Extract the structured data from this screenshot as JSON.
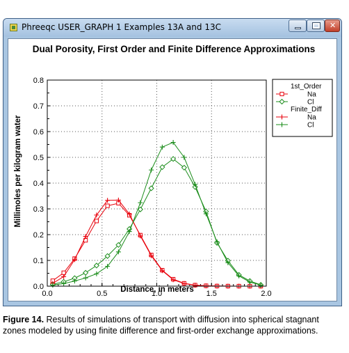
{
  "window": {
    "title": "Phreeqc USER_GRAPH 1 Examples 13A and 13C"
  },
  "caption": {
    "label": "Figure 14.",
    "text": " Results of simulations of transport with diffusion into spherical stagnant zones modeled by using finite difference and first-order exchange approximations."
  },
  "colors": {
    "Na": "#e8000b",
    "Cl": "#1a8c1a",
    "grid": "#555555"
  },
  "chart_data": {
    "type": "line",
    "title": "Dual Porosity, First Order and Finite Difference Approximations",
    "xlabel": "Distance, in meters",
    "ylabel": "Millimoles per kilogram water",
    "xlim": [
      0,
      2
    ],
    "ylim": [
      0,
      0.8
    ],
    "xticks": [
      "0.0",
      "0.5",
      "1.0",
      "1.5",
      "2.0"
    ],
    "yticks": [
      "0.0",
      "0.1",
      "0.2",
      "0.3",
      "0.4",
      "0.5",
      "0.6",
      "0.7",
      "0.8"
    ],
    "grid": true,
    "legend_position": "right",
    "legend_groups": [
      {
        "heading": "1st_Order",
        "items": [
          "Na",
          "Cl"
        ]
      },
      {
        "heading": "Finite_Diff",
        "items": [
          "Na",
          "Cl"
        ]
      }
    ],
    "series": [
      {
        "group": "1st_Order",
        "name": "Na",
        "element": "Na",
        "marker": "square",
        "x": [
          0.05,
          0.15,
          0.25,
          0.35,
          0.45,
          0.55,
          0.65,
          0.75,
          0.85,
          0.95,
          1.05,
          1.15,
          1.25,
          1.35,
          1.45,
          1.55,
          1.65,
          1.75,
          1.85,
          1.95
        ],
        "y": [
          0.021,
          0.052,
          0.107,
          0.178,
          0.253,
          0.312,
          0.322,
          0.275,
          0.198,
          0.121,
          0.062,
          0.027,
          0.011,
          0.004,
          0.0015,
          0.0005,
          0.0002,
          0.0001,
          0.0,
          0.0
        ]
      },
      {
        "group": "1st_Order",
        "name": "Cl",
        "element": "Cl",
        "marker": "diamond",
        "x": [
          0.05,
          0.15,
          0.25,
          0.35,
          0.45,
          0.55,
          0.65,
          0.75,
          0.85,
          0.95,
          1.05,
          1.15,
          1.25,
          1.35,
          1.45,
          1.55,
          1.65,
          1.75,
          1.85,
          1.95
        ],
        "y": [
          0.007,
          0.017,
          0.031,
          0.052,
          0.08,
          0.117,
          0.16,
          0.222,
          0.298,
          0.38,
          0.462,
          0.494,
          0.46,
          0.385,
          0.29,
          0.168,
          0.099,
          0.044,
          0.02,
          0.005
        ]
      },
      {
        "group": "Finite_Diff",
        "name": "Na",
        "element": "Na",
        "marker": "plus",
        "x": [
          0.05,
          0.15,
          0.25,
          0.35,
          0.45,
          0.55,
          0.65,
          0.75,
          0.85,
          0.95,
          1.05,
          1.15,
          1.25,
          1.35,
          1.45,
          1.55,
          1.65,
          1.75,
          1.85,
          1.95
        ],
        "y": [
          0.011,
          0.037,
          0.103,
          0.193,
          0.276,
          0.333,
          0.334,
          0.28,
          0.195,
          0.118,
          0.06,
          0.025,
          0.01,
          0.0035,
          0.001,
          0.0003,
          0.0001,
          0.0,
          0.0,
          0.0
        ]
      },
      {
        "group": "Finite_Diff",
        "name": "Cl",
        "element": "Cl",
        "marker": "plus",
        "x": [
          0.05,
          0.15,
          0.25,
          0.35,
          0.45,
          0.55,
          0.65,
          0.75,
          0.85,
          0.95,
          1.05,
          1.15,
          1.25,
          1.35,
          1.45,
          1.55,
          1.65,
          1.75,
          1.85,
          1.95
        ],
        "y": [
          0.004,
          0.01,
          0.02,
          0.032,
          0.048,
          0.077,
          0.133,
          0.212,
          0.324,
          0.451,
          0.54,
          0.558,
          0.5,
          0.395,
          0.281,
          0.172,
          0.091,
          0.04,
          0.016,
          0.004
        ]
      }
    ]
  }
}
